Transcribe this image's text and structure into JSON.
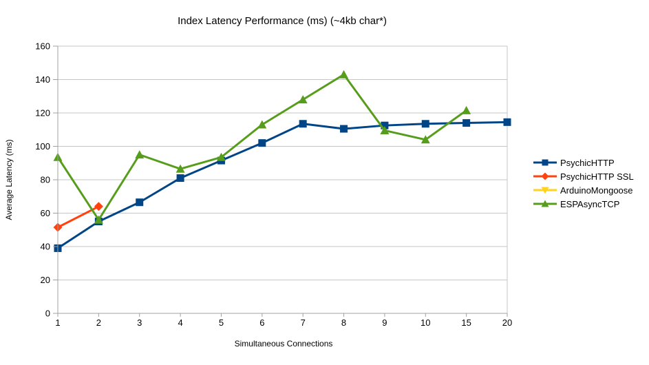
{
  "chart_data": {
    "type": "line",
    "title": "Index Latency Performance (ms) (~4kb char*)",
    "xlabel": "Simultaneous Connections",
    "ylabel": "Average Latency (ms)",
    "categories": [
      "1",
      "2",
      "3",
      "4",
      "5",
      "6",
      "7",
      "8",
      "9",
      "10",
      "15",
      "20"
    ],
    "ylim": [
      0,
      160
    ],
    "y_ticks": [
      0,
      20,
      40,
      60,
      80,
      100,
      120,
      140,
      160
    ],
    "grid": "horizontal",
    "legend_position": "right",
    "series": [
      {
        "name": "PsychicHTTP",
        "color": "#004586",
        "marker": "square",
        "values": [
          39,
          55,
          66.5,
          81,
          91.5,
          102,
          113.5,
          110.5,
          112.5,
          113.5,
          114,
          114.5
        ]
      },
      {
        "name": "PsychicHTTP SSL",
        "color": "#FF420E",
        "marker": "diamond",
        "values": [
          51.5,
          64,
          null,
          null,
          null,
          null,
          null,
          null,
          null,
          null,
          null,
          null
        ]
      },
      {
        "name": "ArduinoMongoose",
        "color": "#FFD320",
        "marker": "triangle-down",
        "values": [
          null,
          null,
          null,
          null,
          null,
          null,
          null,
          null,
          null,
          null,
          null,
          null
        ]
      },
      {
        "name": "ESPAsyncTCP",
        "color": "#579D1C",
        "marker": "triangle-up",
        "values": [
          93.5,
          56,
          95,
          86.5,
          93.5,
          113,
          128,
          143,
          109.5,
          104,
          121.5,
          null
        ]
      }
    ]
  },
  "colors": {
    "grid": "#C6C6C6",
    "axis": "#A0A0A0",
    "text": "#000000",
    "background": "#FFFFFF"
  }
}
